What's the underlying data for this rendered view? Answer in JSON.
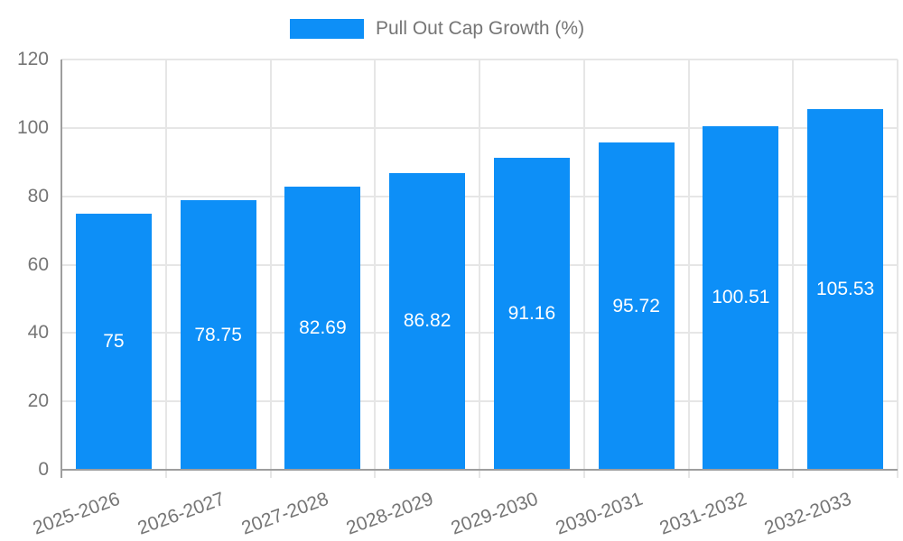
{
  "legend": {
    "label": "Pull Out Cap Growth (%)"
  },
  "colors": {
    "bar": "#0d8ff7",
    "grid": "#e6e6e6",
    "axis": "#9e9e9e",
    "tick_text": "#757575",
    "legend_text": "#757575",
    "bar_label_text": "#ffffff",
    "background": "#ffffff"
  },
  "chart_data": {
    "type": "bar",
    "title": "Pull Out Cap Growth (%)",
    "categories": [
      "2025-2026",
      "2026-2027",
      "2027-2028",
      "2028-2029",
      "2029-2030",
      "2030-2031",
      "2031-2032",
      "2032-2033"
    ],
    "values": [
      75,
      78.75,
      82.69,
      86.82,
      91.16,
      95.72,
      100.51,
      105.53
    ],
    "bar_labels": [
      "75",
      "78.75",
      "82.69",
      "86.82",
      "91.16",
      "95.72",
      "100.51",
      "105.53"
    ],
    "xlabel": "",
    "ylabel": "",
    "ylim": [
      0,
      120
    ],
    "yticks": [
      0,
      20,
      40,
      60,
      80,
      100,
      120
    ],
    "grid": true,
    "legend_position": "top-center",
    "x_label_rotation_deg": -20
  }
}
